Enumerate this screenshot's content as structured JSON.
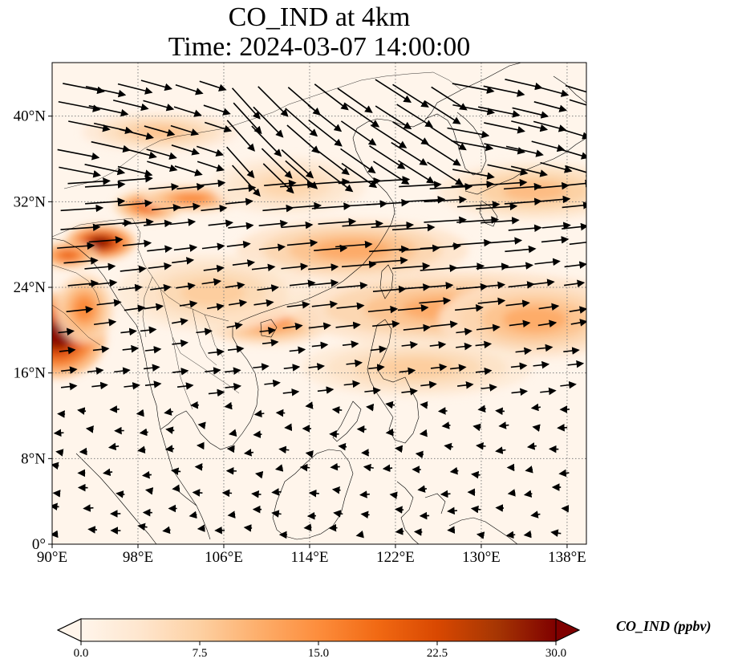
{
  "title": {
    "line1": "CO_IND at 4km",
    "line2": "Time: 2024-03-07 14:00:00"
  },
  "map": {
    "extent": {
      "lon_min": 90,
      "lon_max": 139.8,
      "lat_min": 0,
      "lat_max": 45
    },
    "x_ticks": [
      {
        "lon": 90,
        "label": "90°E"
      },
      {
        "lon": 98,
        "label": "98°E"
      },
      {
        "lon": 106,
        "label": "106°E"
      },
      {
        "lon": 114,
        "label": "114°E"
      },
      {
        "lon": 122,
        "label": "122°E"
      },
      {
        "lon": 130,
        "label": "130°E"
      },
      {
        "lon": 138,
        "label": "138°E"
      }
    ],
    "y_ticks": [
      {
        "lat": 0,
        "label": "0°"
      },
      {
        "lat": 8,
        "label": "8°N"
      },
      {
        "lat": 16,
        "label": "16°N"
      },
      {
        "lat": 24,
        "label": "24°N"
      },
      {
        "lat": 32,
        "label": "32°N"
      },
      {
        "lat": 40,
        "label": "40°N"
      }
    ],
    "colors": {
      "field_low": "#fff5eb",
      "field_mid": "#fdae6b",
      "field_high": "#d94801",
      "field_max": "#7f0000",
      "coast": "#000000",
      "grid": "#808080",
      "arrow": "#000000"
    },
    "concentration_hotspots": [
      {
        "lon": 90.5,
        "lat": 19.5,
        "value": 30,
        "rlon": 2.5,
        "rlat": 2.2
      },
      {
        "lon": 94.5,
        "lat": 28.2,
        "value": 30,
        "rlon": 1.8,
        "rlat": 0.9
      },
      {
        "lon": 99.0,
        "lat": 31.6,
        "value": 20,
        "rlon": 1.8,
        "rlat": 0.8
      },
      {
        "lon": 103.0,
        "lat": 32.3,
        "value": 16,
        "rlon": 2.6,
        "rlat": 0.7
      },
      {
        "lon": 91.5,
        "lat": 27.0,
        "value": 20,
        "rlon": 1.5,
        "rlat": 0.7
      },
      {
        "lon": 93.0,
        "lat": 22.0,
        "value": 16,
        "rlon": 1.5,
        "rlat": 1.8
      },
      {
        "lon": 110.0,
        "lat": 21.0,
        "value": 16,
        "rlon": 3.5,
        "rlat": 1.3
      },
      {
        "lon": 118.0,
        "lat": 27.5,
        "value": 12,
        "rlon": 6.0,
        "rlat": 1.6
      },
      {
        "lon": 128.0,
        "lat": 22.0,
        "value": 12,
        "rlon": 9.0,
        "rlat": 2.0
      },
      {
        "lon": 135.0,
        "lat": 21.0,
        "value": 12,
        "rlon": 5.0,
        "rlat": 2.0
      },
      {
        "lon": 100.0,
        "lat": 38.5,
        "value": 9,
        "rlon": 4.0,
        "rlat": 1.0
      },
      {
        "lon": 135.0,
        "lat": 33.0,
        "value": 10,
        "rlon": 5.0,
        "rlat": 1.5
      },
      {
        "lon": 105.0,
        "lat": 23.5,
        "value": 8,
        "rlon": 5.0,
        "rlat": 2.0
      },
      {
        "lon": 124.0,
        "lat": 16.5,
        "value": 8,
        "rlon": 6.0,
        "rlat": 1.5
      },
      {
        "lon": 112.0,
        "lat": 33.5,
        "value": 7,
        "rlon": 4.0,
        "rlat": 1.5
      }
    ]
  },
  "colorbar": {
    "min": 0,
    "max": 30,
    "ticks": [
      "0.0",
      "7.5",
      "15.0",
      "22.5",
      "30.0"
    ],
    "label": "CO_IND (ppbv)",
    "stops": [
      "#fff5eb",
      "#fee6ce",
      "#fdd0a2",
      "#fdae6b",
      "#fd8d3c",
      "#f16913",
      "#d94801",
      "#a63603",
      "#7f0000"
    ]
  }
}
